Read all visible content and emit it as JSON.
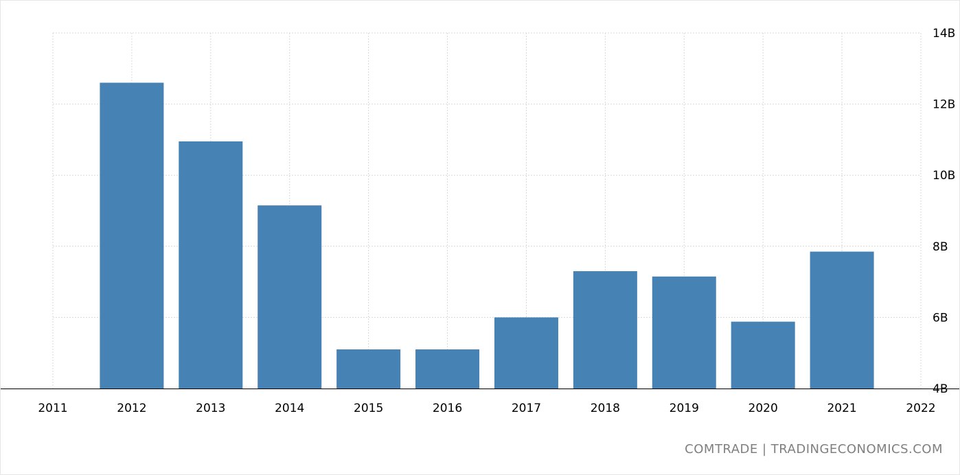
{
  "source_credit": "COMTRADE | TRADINGECONOMICS.COM",
  "chart_data": {
    "type": "bar",
    "categories": [
      "2012",
      "2013",
      "2014",
      "2015",
      "2016",
      "2017",
      "2018",
      "2019",
      "2020",
      "2021"
    ],
    "x_values": [
      2012,
      2013,
      2014,
      2015,
      2016,
      2017,
      2018,
      2019,
      2020,
      2021
    ],
    "values": [
      12.6,
      10.95,
      9.15,
      5.1,
      5.1,
      6.0,
      7.3,
      7.15,
      5.88,
      7.85
    ],
    "value_unit": "billions",
    "title": "",
    "xlabel": "",
    "ylabel": "",
    "xlim": [
      2011,
      2022
    ],
    "ylim": [
      4,
      14
    ],
    "x_ticks": [
      "2011",
      "2012",
      "2013",
      "2014",
      "2015",
      "2016",
      "2017",
      "2018",
      "2019",
      "2020",
      "2021",
      "2022"
    ],
    "y_ticks": [
      {
        "value": 4,
        "label": "4B"
      },
      {
        "value": 6,
        "label": "6B"
      },
      {
        "value": 8,
        "label": "8B"
      },
      {
        "value": 10,
        "label": "10B"
      },
      {
        "value": 12,
        "label": "12B"
      },
      {
        "value": 14,
        "label": "14B"
      }
    ],
    "y_axis_side": "right",
    "grid": true,
    "legend": "none",
    "bar_color": "#4682b4",
    "grid_color": "#d9d9d9",
    "axis_color": "#000000"
  }
}
